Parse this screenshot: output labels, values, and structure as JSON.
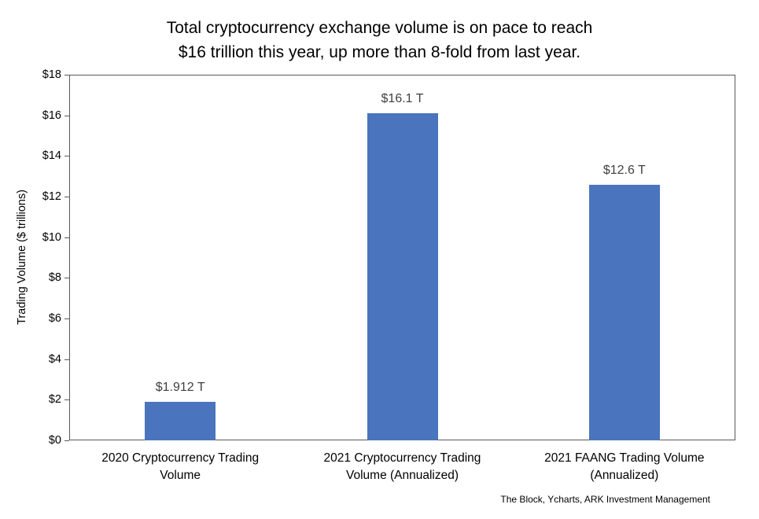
{
  "chart_data": {
    "type": "bar",
    "title": "Total cryptocurrency exchange volume is on pace to reach $16 trillion this year, up more than 8-fold from last year.",
    "title_lines": [
      "Total cryptocurrency exchange volume is on pace to reach",
      "$16 trillion this year, up more than 8-fold from last year."
    ],
    "ylabel": "Trading Volume ($ trillions)",
    "xlabel": "",
    "ylim": [
      0,
      18
    ],
    "ytick_step": 2,
    "ytick_labels": [
      "$0",
      "$2",
      "$4",
      "$6",
      "$8",
      "$10",
      "$12",
      "$14",
      "$16",
      "$18"
    ],
    "categories": [
      "2020 Cryptocurrency Trading\nVolume",
      "2021 Cryptocurrency Trading\nVolume (Annualized)",
      "2021 FAANG Trading Volume\n(Annualized)"
    ],
    "values": [
      1.912,
      16.1,
      12.6
    ],
    "data_labels": [
      "$1.912 T",
      "$16.1 T",
      "$12.6 T"
    ],
    "bar_color": "#4a74bd",
    "grid": false,
    "legend": "none",
    "source": "The Block, Ycharts, ARK Investment Management"
  }
}
